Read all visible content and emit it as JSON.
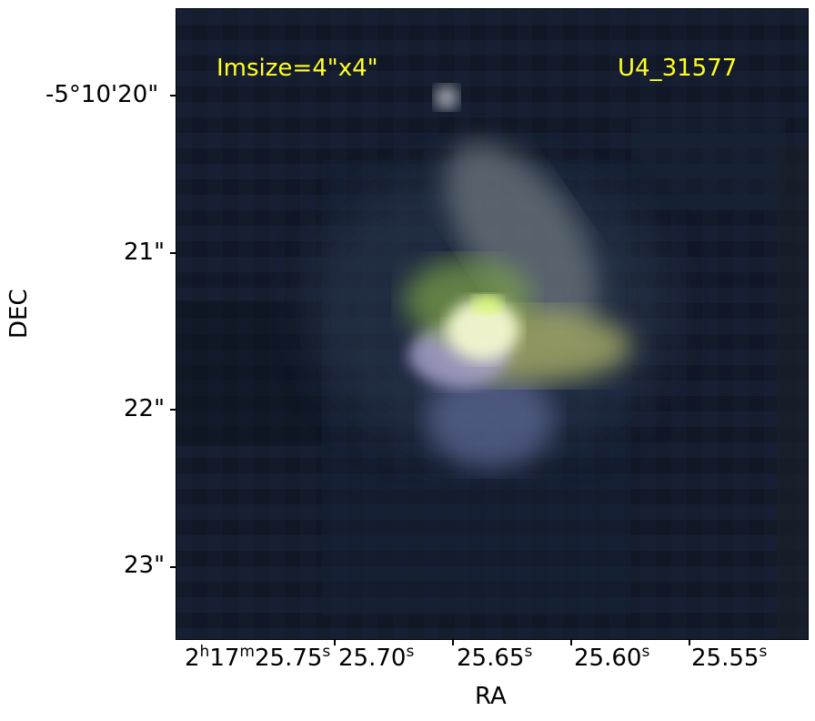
{
  "figure": {
    "label_imsize": "Imsize=4\"x4\"",
    "label_source": "U4_31577"
  },
  "axes": {
    "xlabel": "RA",
    "ylabel": "DEC",
    "ytick_labels": [
      "-5°10'20\"",
      "21\"",
      "22\"",
      "23\""
    ],
    "xtick_labels": [
      {
        "h": "2",
        "hs": "h",
        "m": "17",
        "ms": "m",
        "s": "25.75",
        "ss": "s"
      },
      {
        "s": "25.70",
        "ss": "s"
      },
      {
        "s": "25.65",
        "ss": "s"
      },
      {
        "s": "25.60",
        "ss": "s"
      },
      {
        "s": "25.55",
        "ss": "s"
      }
    ]
  },
  "colors": {
    "label_yellow": "#ffff22",
    "background": "#111a2a"
  }
}
